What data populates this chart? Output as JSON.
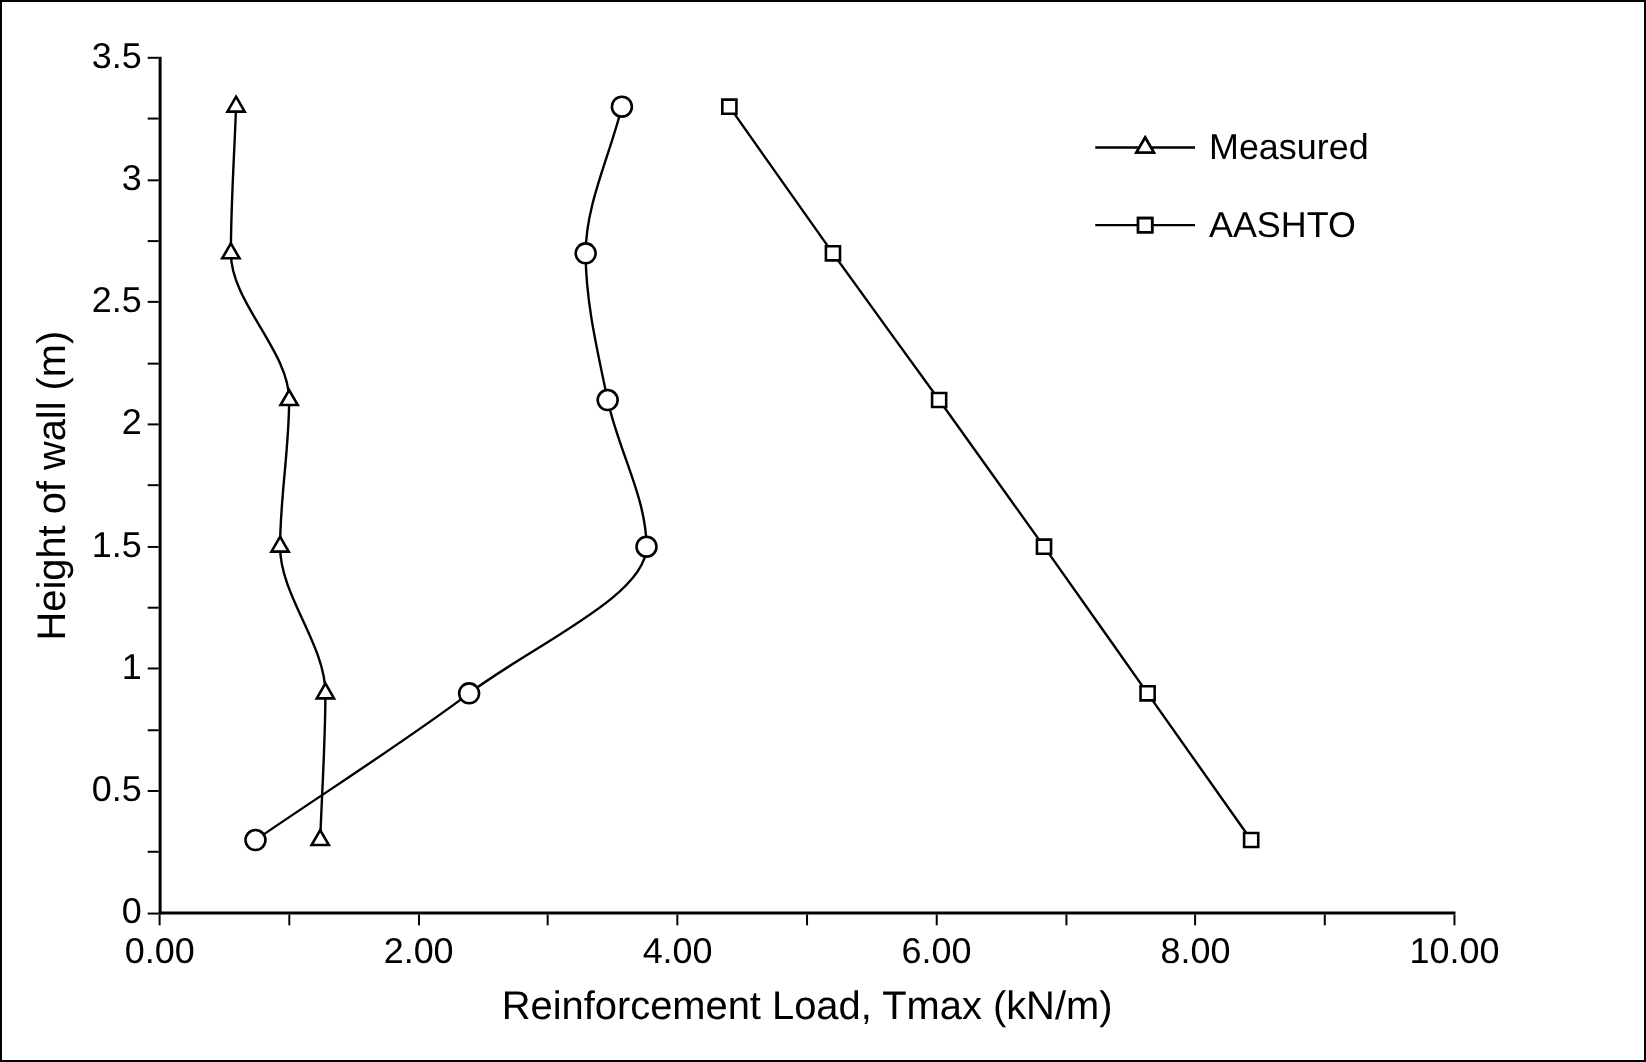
{
  "chart_data": {
    "type": "line",
    "xlabel": "Reinforcement Load, Tmax (kN/m)",
    "ylabel": "Height of wall (m)",
    "xlim": [
      0,
      10
    ],
    "xticks": [
      {
        "value": 0,
        "label": "0.00"
      },
      {
        "value": 1,
        "label": null
      },
      {
        "value": 2,
        "label": "2.00"
      },
      {
        "value": 3,
        "label": null
      },
      {
        "value": 4,
        "label": "4.00"
      },
      {
        "value": 5,
        "label": null
      },
      {
        "value": 6,
        "label": "6.00"
      },
      {
        "value": 7,
        "label": null
      },
      {
        "value": 8,
        "label": "8.00"
      },
      {
        "value": 9,
        "label": null
      },
      {
        "value": 10,
        "label": "10.00"
      }
    ],
    "ylim": [
      0,
      3.5
    ],
    "yticks": [
      0,
      {
        "value": 0.25,
        "label": null
      },
      0.5,
      {
        "value": 0.75,
        "label": null
      },
      1,
      {
        "value": 1.25,
        "label": null
      },
      1.5,
      {
        "value": 1.75,
        "label": null
      },
      2,
      {
        "value": 2.25,
        "label": null
      },
      2.5,
      {
        "value": 2.75,
        "label": null
      },
      3,
      {
        "value": 3.25,
        "label": null
      },
      3.5
    ],
    "grid": false,
    "legend": "top right",
    "line_style": "solid",
    "series": [
      {
        "color": "#000000",
        "marker": "circle",
        "x": [
          0.74,
          2.39,
          3.76,
          3.46,
          3.29,
          3.57
        ],
        "values": [
          0.3,
          0.9,
          1.5,
          2.1,
          2.7,
          3.3
        ]
      },
      {
        "name": "Measured",
        "color": "#000000",
        "marker": "triangle",
        "x": [
          1.24,
          1.28,
          0.93,
          1.0,
          0.55,
          0.59
        ],
        "values": [
          0.3,
          0.9,
          1.5,
          2.1,
          2.7,
          3.3
        ]
      },
      {
        "name": "AASHTO",
        "color": "#000000",
        "marker": "square",
        "x": [
          8.43,
          7.63,
          6.83,
          6.02,
          5.2,
          4.4
        ],
        "values": [
          0.3,
          0.9,
          1.5,
          2.1,
          2.7,
          3.3
        ]
      }
    ]
  }
}
